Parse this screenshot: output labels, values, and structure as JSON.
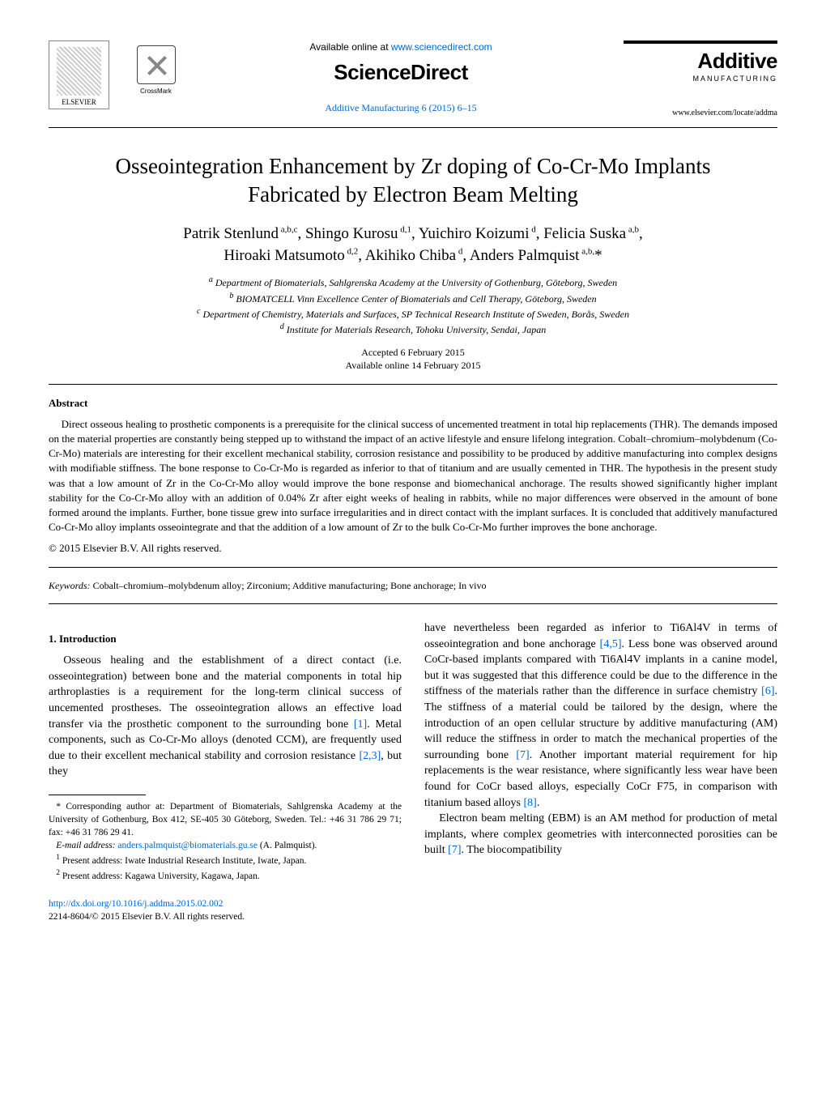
{
  "header": {
    "elsevier": "ELSEVIER",
    "crossmark": "CrossMark",
    "available_prefix": "Available online at ",
    "available_url": "www.sciencedirect.com",
    "sciencedirect": "ScienceDirect",
    "journal_ref": "Additive Manufacturing 6 (2015) 6–15",
    "additive_main": "Additive",
    "additive_sub": "MANUFACTURING",
    "journal_url": "www.elsevier.com/locate/addma"
  },
  "title": "Osseointegration Enhancement by Zr doping of Co-Cr-Mo Implants Fabricated by Electron Beam Melting",
  "authors_html": "Patrik Stenlund <sup>a,b,c</sup>, Shingo Kurosu <sup>d,1</sup>, Yuichiro Koizumi <sup>d</sup>, Felicia Suska <sup>a,b</sup>, Hiroaki Matsumoto <sup>d,2</sup>, Akihiko Chiba <sup>d</sup>, Anders Palmquist <sup>a,b,*</sup>",
  "affiliations": [
    "a Department of Biomaterials, Sahlgrenska Academy at the University of Gothenburg, Göteborg, Sweden",
    "b BIOMATCELL Vinn Excellence Center of Biomaterials and Cell Therapy, Göteborg, Sweden",
    "c Department of Chemistry, Materials and Surfaces, SP Technical Research Institute of Sweden, Borås, Sweden",
    "d Institute for Materials Research, Tohoku University, Sendai, Japan"
  ],
  "dates": {
    "accepted": "Accepted 6 February 2015",
    "online": "Available online 14 February 2015"
  },
  "abstract": {
    "heading": "Abstract",
    "body": "Direct osseous healing to prosthetic components is a prerequisite for the clinical success of uncemented treatment in total hip replacements (THR). The demands imposed on the material properties are constantly being stepped up to withstand the impact of an active lifestyle and ensure lifelong integration. Cobalt–chromium–molybdenum (Co-Cr-Mo) materials are interesting for their excellent mechanical stability, corrosion resistance and possibility to be produced by additive manufacturing into complex designs with modifiable stiffness. The bone response to Co-Cr-Mo is regarded as inferior to that of titanium and are usually cemented in THR. The hypothesis in the present study was that a low amount of Zr in the Co-Cr-Mo alloy would improve the bone response and biomechanical anchorage. The results showed significantly higher implant stability for the Co-Cr-Mo alloy with an addition of 0.04% Zr after eight weeks of healing in rabbits, while no major differences were observed in the amount of bone formed around the implants. Further, bone tissue grew into surface irregularities and in direct contact with the implant surfaces. It is concluded that additively manufactured Co-Cr-Mo alloy implants osseointegrate and that the addition of a low amount of Zr to the bulk Co-Cr-Mo further improves the bone anchorage.",
    "copyright": "© 2015 Elsevier B.V. All rights reserved."
  },
  "keywords": {
    "label": "Keywords:",
    "text": "Cobalt–chromium–molybdenum alloy; Zirconium; Additive manufacturing; Bone anchorage; In vivo"
  },
  "intro": {
    "heading": "1.  Introduction",
    "left_p1_pre": "Osseous healing and the establishment of a direct contact (i.e. osseointegration) between bone and the material components in total hip arthroplasties is a requirement for the long-term clinical success of uncemented prostheses. The osseointegration allows an effective load transfer via the prosthetic component to the surrounding bone ",
    "ref1": "[1]",
    "left_p1_mid": ". Metal components, such as Co-Cr-Mo alloys (denoted CCM), are frequently used due to their excellent mechanical stability and corrosion resistance ",
    "ref23": "[2,3]",
    "left_p1_post": ", but they",
    "right_p1_pre": "have nevertheless been regarded as inferior to Ti6Al4V in terms of osseointegration and bone anchorage ",
    "ref45": "[4,5]",
    "right_p1_a": ". Less bone was observed around CoCr-based implants compared with Ti6Al4V implants in a canine model, but it was suggested that this difference could be due to the difference in the stiffness of the materials rather than the difference in surface chemistry ",
    "ref6": "[6]",
    "right_p1_b": ". The stiffness of a material could be tailored by the design, where the introduction of an open cellular structure by additive manufacturing (AM) will reduce the stiffness in order to match the mechanical properties of the surrounding bone ",
    "ref7": "[7]",
    "right_p1_c": ". Another important material requirement for hip replacements is the wear resistance, where significantly less wear have been found for CoCr based alloys, especially CoCr F75, in comparison with titanium based alloys ",
    "ref8": "[8]",
    "right_p1_d": ".",
    "right_p2_pre": "Electron beam melting (EBM) is an AM method for production of metal implants, where complex geometries with interconnected porosities can be built ",
    "ref7b": "[7]",
    "right_p2_post": ". The biocompatibility"
  },
  "footnotes": {
    "corr": "* Corresponding author at: Department of Biomaterials, Sahlgrenska Academy at the University of Gothenburg, Box 412, SE-405 30 Göteborg, Sweden. Tel.: +46 31 786 29 71; fax: +46 31 786 29 41.",
    "email_label": "E-mail address: ",
    "email": "anders.palmquist@biomaterials.gu.se",
    "email_who": " (A. Palmquist).",
    "fn1": "1 Present address: Iwate Industrial Research Institute, Iwate, Japan.",
    "fn2": "2 Present address: Kagawa University, Kagawa, Japan."
  },
  "doi": {
    "url": "http://dx.doi.org/10.1016/j.addma.2015.02.002",
    "issn": "2214-8604/© 2015 Elsevier B.V. All rights reserved."
  }
}
